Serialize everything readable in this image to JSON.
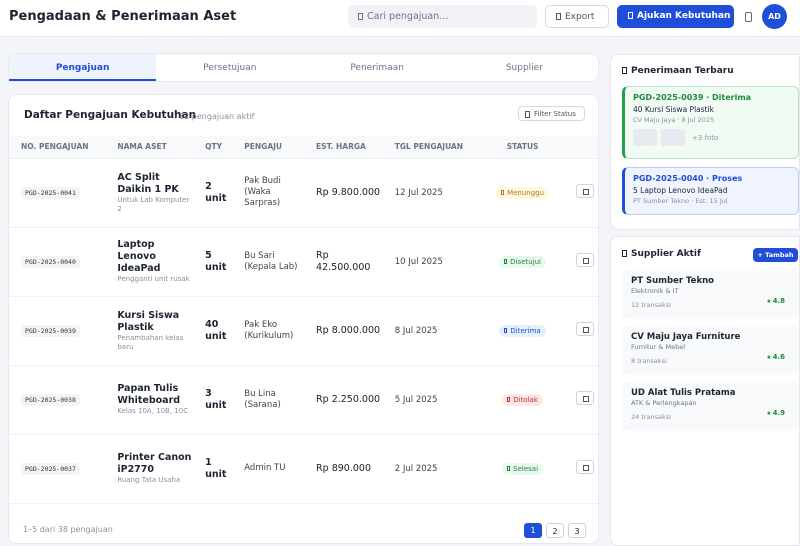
{
  "header": {
    "title": "Pengadaan & Penerimaan Aset",
    "search_placeholder": "Cari pengajuan...",
    "export": "Export",
    "submit": "Ajukan Kebutuhan",
    "avatar": "AD"
  },
  "tabs": [
    "Pengajuan",
    "Persetujuan",
    "Penerimaan",
    "Supplier"
  ],
  "table": {
    "title": "Daftar Pengajuan Kebutuhan",
    "subtitle": "· 12 pengajuan aktif",
    "filter": "Filter Status",
    "columns": [
      "NO. PENGAJUAN",
      "NAMA ASET",
      "QTY",
      "PENGAJU",
      "EST. HARGA",
      "TGL PENGAJUAN",
      "STATUS"
    ],
    "rows": [
      {
        "no": "PGD-2025-0041",
        "name": "AC Split Daikin 1 PK",
        "desc": "Untuk Lab Komputer 2",
        "qty": "2 unit",
        "requester": "Pak Budi (Waka Sarpras)",
        "price": "Rp 9.800.000",
        "date": "12 Jul 2025",
        "status": "Menunggu"
      },
      {
        "no": "PGD-2025-0040",
        "name": "Laptop Lenovo IdeaPad",
        "desc": "Pengganti unit rusak",
        "qty": "5 unit",
        "requester": "Bu Sari (Kepala Lab)",
        "price": "Rp 42.500.000",
        "date": "10 Jul 2025",
        "status": "Disetujui"
      },
      {
        "no": "PGD-2025-0039",
        "name": "Kursi Siswa Plastik",
        "desc": "Penambahan kelas baru",
        "qty": "40 unit",
        "requester": "Pak Eko (Kurikulum)",
        "price": "Rp 8.000.000",
        "date": "8 Jul 2025",
        "status": "Diterima"
      },
      {
        "no": "PGD-2025-0038",
        "name": "Papan Tulis Whiteboard",
        "desc": "Kelas 10A, 10B, 10C",
        "qty": "3 unit",
        "requester": "Bu Lina (Sarana)",
        "price": "Rp 2.250.000",
        "date": "5 Jul 2025",
        "status": "Ditolak"
      },
      {
        "no": "PGD-2025-0037",
        "name": "Printer Canon iP2770",
        "desc": "Ruang Tata Usaha",
        "qty": "1 unit",
        "requester": "Admin TU",
        "price": "Rp 890.000",
        "date": "2 Jul 2025",
        "status": "Selesai"
      }
    ]
  },
  "pagination": {
    "info": "1–5 dari 38 pengajuan",
    "pages": [
      "1",
      "2",
      "3"
    ]
  },
  "receipts": {
    "title": "Penerimaan Terbaru",
    "items": [
      {
        "title": "PGD-2025-0039 · Diterima",
        "desc": "40 Kursi Siswa Plastik",
        "meta": "CV Maju Jaya · 8 Jul 2025",
        "photos": "+3 foto"
      },
      {
        "title": "PGD-2025-0040 · Proses",
        "desc": "5 Laptop Lenovo IdeaPad",
        "meta": "PT Sumber Tekno · Est. 15 Jul"
      }
    ]
  },
  "suppliers": {
    "title": "Supplier Aktif",
    "add": "+ Tambah",
    "items": [
      {
        "name": "PT Sumber Tekno",
        "category": "Elektronik & IT",
        "transactions": "12 transaksi",
        "rating": 4.8
      },
      {
        "name": "CV Maju Jaya Furniture",
        "category": "Furnitur & Mebel",
        "transactions": "8 transaksi",
        "rating": 4.6
      },
      {
        "name": "UD Alat Tulis Pratama",
        "category": "ATK & Perlengkapan",
        "transactions": "24 transaksi",
        "rating": 4.9
      }
    ]
  }
}
